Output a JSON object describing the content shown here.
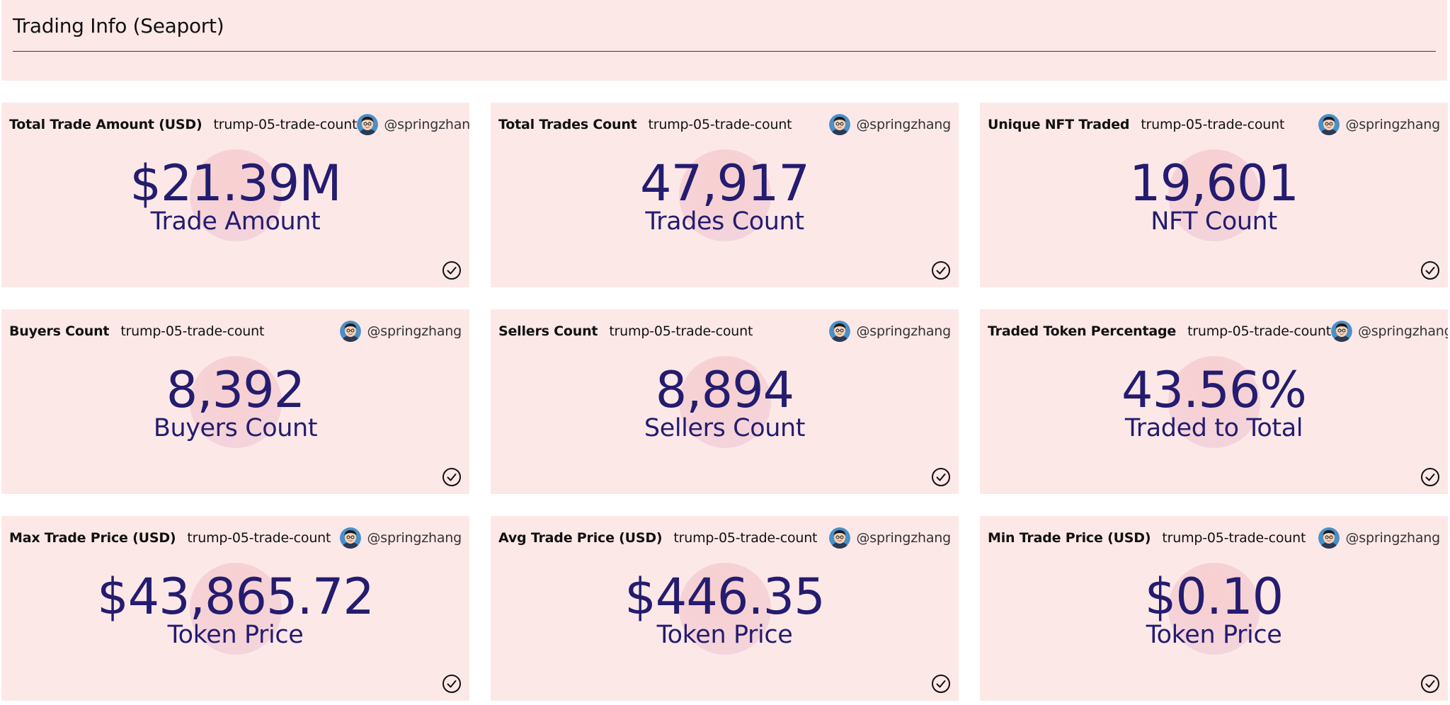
{
  "page": {
    "title": "Trading Info (Seaport)"
  },
  "cards": [
    {
      "name": "Total Trade Amount (USD)",
      "query": "trump-05-trade-count",
      "author": "@springzhang",
      "value": "$21.39M",
      "label": "Trade Amount"
    },
    {
      "name": "Total Trades Count",
      "query": "trump-05-trade-count",
      "author": "@springzhang",
      "value": "47,917",
      "label": "Trades Count"
    },
    {
      "name": "Unique NFT Traded",
      "query": "trump-05-trade-count",
      "author": "@springzhang",
      "value": "19,601",
      "label": "NFT Count"
    },
    {
      "name": "Buyers Count",
      "query": "trump-05-trade-count",
      "author": "@springzhang",
      "value": "8,392",
      "label": "Buyers Count"
    },
    {
      "name": "Sellers Count",
      "query": "trump-05-trade-count",
      "author": "@springzhang",
      "value": "8,894",
      "label": "Sellers Count"
    },
    {
      "name": "Traded Token Percentage",
      "query": "trump-05-trade-count",
      "author": "@springzhang",
      "value": "43.56%",
      "label": "Traded to Total"
    },
    {
      "name": "Max Trade Price (USD)",
      "query": "trump-05-trade-count",
      "author": "@springzhang",
      "value": "$43,865.72",
      "label": "Token Price"
    },
    {
      "name": "Avg Trade Price (USD)",
      "query": "trump-05-trade-count",
      "author": "@springzhang",
      "value": "$446.35",
      "label": "Token Price"
    },
    {
      "name": "Min Trade Price (USD)",
      "query": "trump-05-trade-count",
      "author": "@springzhang",
      "value": "$0.10",
      "label": "Token Price"
    }
  ],
  "icons": {
    "avatar": "author-avatar-icon",
    "status": "check-circle-icon"
  },
  "colors": {
    "card_background": "#fde8e8",
    "value_text": "#241c6f"
  }
}
